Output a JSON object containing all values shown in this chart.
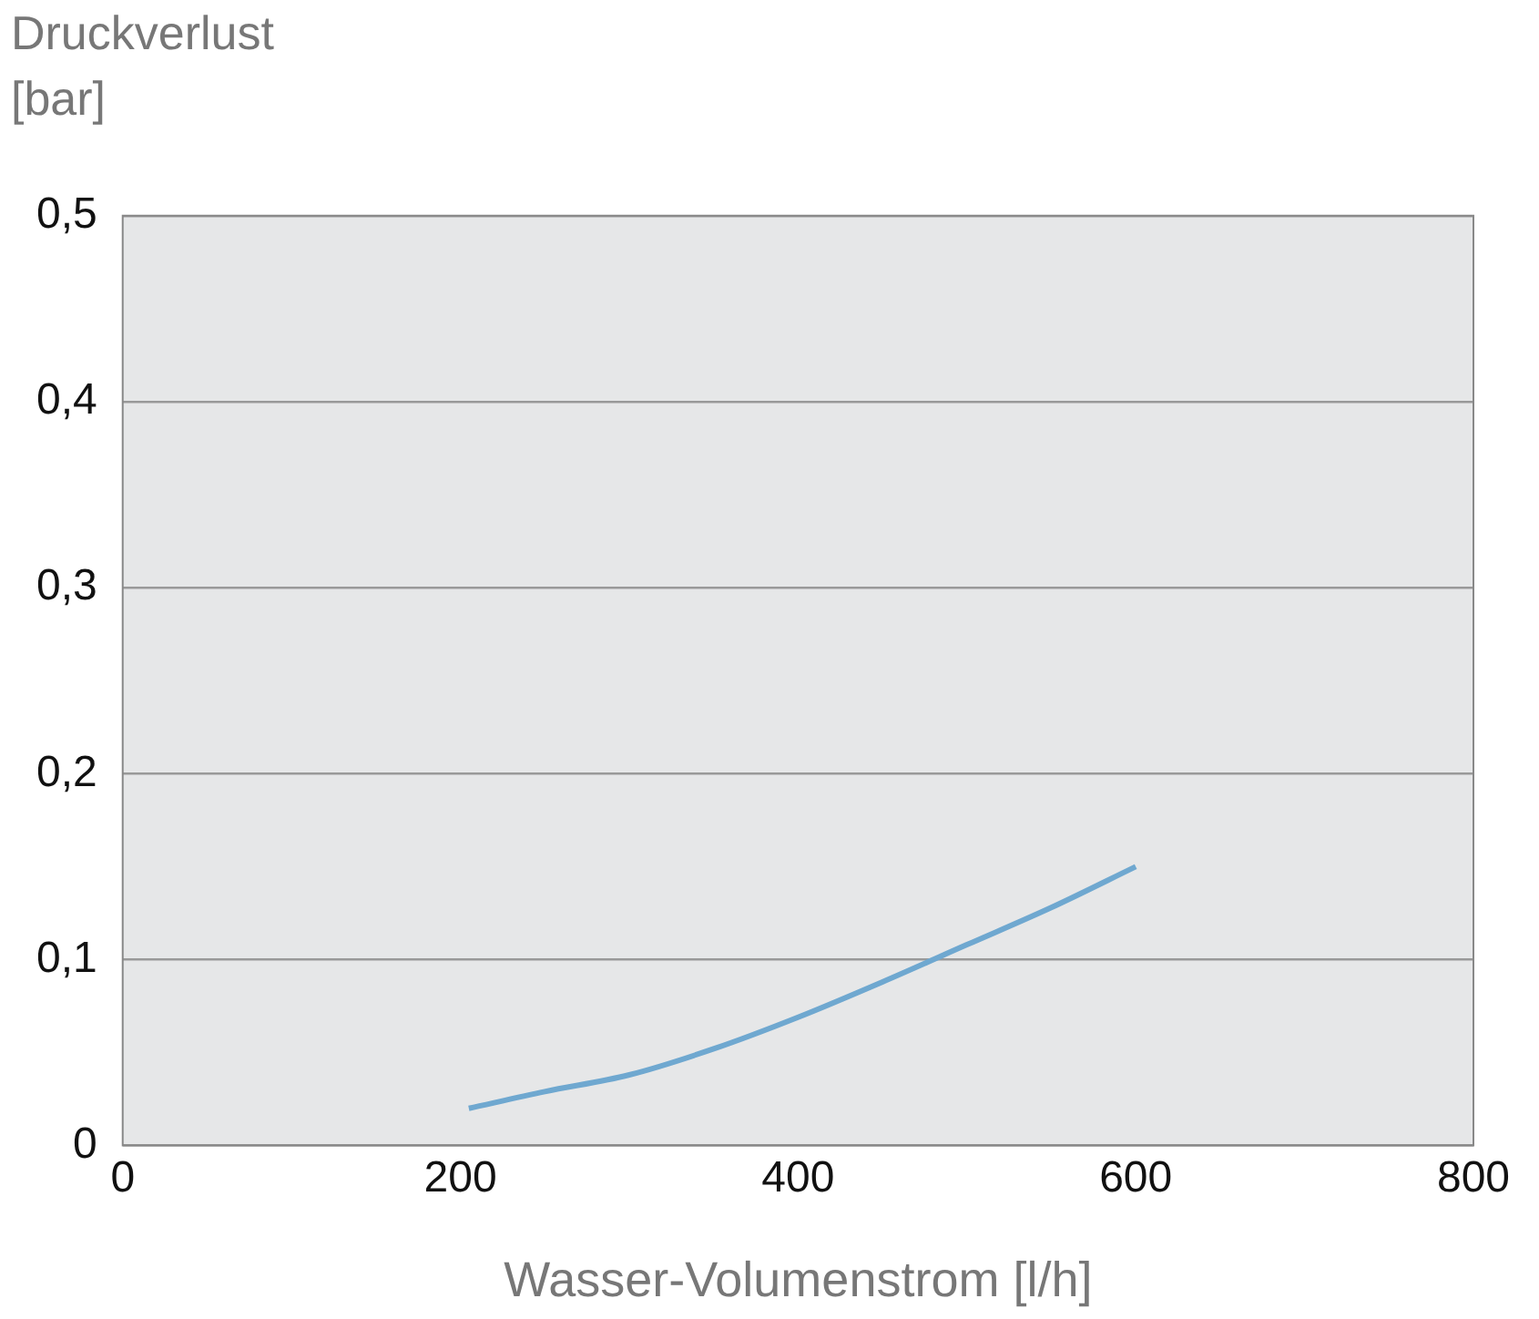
{
  "chart_data": {
    "type": "line",
    "xlabel": "Wasser-Volumenstrom [l/h]",
    "ylabel": "Druckverlust [bar]",
    "x": [
      205,
      250,
      300,
      350,
      400,
      450,
      500,
      550,
      600
    ],
    "series": [
      {
        "color": "#6fa8d0",
        "values": [
          0.02,
          0.029,
          0.038,
          0.052,
          0.069,
          0.088,
          0.108,
          0.128,
          0.15
        ]
      }
    ],
    "xlim": [
      0,
      800
    ],
    "xticks": [
      0,
      200,
      400,
      600,
      800
    ],
    "ylim": [
      0,
      0.5
    ],
    "yticks": [
      {
        "value": 0,
        "label": "0"
      },
      {
        "value": 0.1,
        "label": "0,1"
      },
      {
        "value": 0.2,
        "label": "0,2"
      },
      {
        "value": 0.3,
        "label": "0,3"
      },
      {
        "value": 0.4,
        "label": "0,4"
      },
      {
        "value": 0.5,
        "label": "0,5"
      }
    ],
    "grid": "y",
    "legend": false,
    "marker": "none",
    "line_style": "solid"
  }
}
